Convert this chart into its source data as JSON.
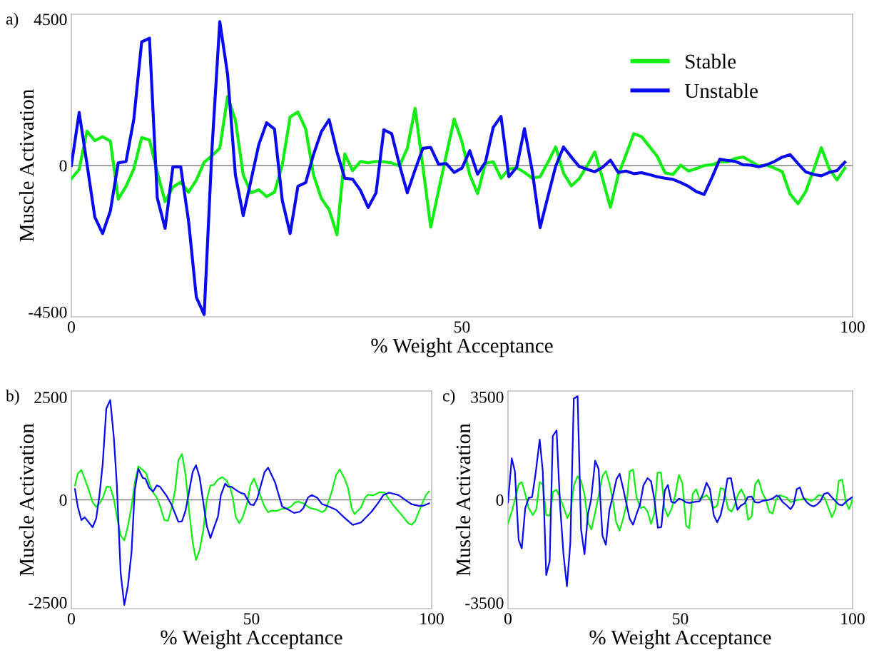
{
  "chart_data": [
    {
      "type": "line",
      "title": "a)",
      "xlabel": "% Weight Acceptance",
      "ylabel": "Muscle Activation",
      "x": [
        0,
        1,
        2,
        3,
        4,
        5,
        6,
        7,
        8,
        9,
        10,
        11,
        12,
        13,
        14,
        15,
        16,
        17,
        18,
        19,
        20,
        21,
        22,
        23,
        24,
        25,
        26,
        27,
        28,
        29,
        30,
        31,
        32,
        33,
        34,
        35,
        36,
        37,
        38,
        39,
        40,
        41,
        42,
        43,
        44,
        45,
        46,
        47,
        48,
        49,
        50,
        51,
        52,
        53,
        54,
        55,
        56,
        57,
        58,
        59,
        60,
        61,
        62,
        63,
        64,
        65,
        66,
        67,
        68,
        69,
        70,
        71,
        72,
        73,
        74,
        75,
        76,
        77,
        78,
        79,
        80,
        81,
        82,
        83,
        84,
        85,
        86,
        87,
        88,
        89,
        90,
        91,
        92,
        93,
        94,
        95,
        96,
        97,
        98,
        99
      ],
      "series": [
        {
          "name": "Stable",
          "color": "#11ee11",
          "values": [
            -405,
            -120,
            1055,
            765,
            885,
            750,
            -1035,
            -640,
            -100,
            860,
            785,
            -210,
            -1110,
            -665,
            -510,
            -820,
            -445,
            100,
            300,
            530,
            2120,
            1395,
            -290,
            -840,
            -745,
            -955,
            -820,
            25,
            1490,
            1645,
            1120,
            -290,
            -1010,
            -1360,
            -2130,
            360,
            -155,
            125,
            85,
            125,
            115,
            80,
            -15,
            530,
            1760,
            -40,
            -1895,
            -775,
            335,
            1430,
            730,
            -290,
            -860,
            65,
            115,
            -390,
            -110,
            -70,
            -210,
            -390,
            -345,
            100,
            570,
            -235,
            -625,
            -405,
            -15,
            415,
            -405,
            -1285,
            -290,
            335,
            980,
            885,
            585,
            280,
            -225,
            -275,
            10,
            -170,
            -95,
            0,
            25,
            115,
            115,
            220,
            260,
            125,
            -15,
            10,
            -80,
            -190,
            -875,
            -1175,
            -800,
            -135,
            550,
            -95,
            -445,
            -80
          ]
        },
        {
          "name": "Unstable",
          "color": "#0a0aee",
          "values": [
            0,
            1630,
            50,
            -1580,
            -2090,
            -1390,
            80,
            125,
            1430,
            3800,
            3915,
            -995,
            -1930,
            -40,
            -40,
            -1700,
            -4050,
            -4580,
            500,
            4425,
            2800,
            -290,
            -1540,
            -450,
            650,
            1315,
            1120,
            -1070,
            -2090,
            -640,
            -525,
            340,
            1040,
            1410,
            415,
            -390,
            -420,
            -760,
            -1290,
            -840,
            1100,
            980,
            20,
            -840,
            -130,
            530,
            555,
            40,
            60,
            -210,
            -80,
            455,
            -265,
            100,
            1175,
            1510,
            -345,
            -55,
            1135,
            -170,
            -1910,
            -955,
            -15,
            570,
            260,
            -30,
            -115,
            -190,
            -55,
            165,
            -210,
            -170,
            -250,
            -220,
            -280,
            -345,
            -390,
            -425,
            -525,
            -640,
            -800,
            -890,
            -370,
            195,
            155,
            125,
            25,
            10,
            -40,
            25,
            125,
            260,
            335,
            65,
            -195,
            -275,
            -315,
            -210,
            -155,
            100
          ]
        }
      ],
      "xlim": [
        0,
        100
      ],
      "xticks": [
        0,
        50,
        100
      ],
      "ylim": [
        -4650,
        4650
      ],
      "yticks": [
        -4500,
        0,
        4500
      ],
      "ref_lines": [
        {
          "axis": "y",
          "value": 0,
          "color": "#808080"
        }
      ],
      "grid": false,
      "legend": "top right"
    },
    {
      "type": "line",
      "title": "b)",
      "xlabel": "% Weight Acceptance",
      "ylabel": "Muscle Activation",
      "series": [
        {
          "color": "#11ee11",
          "x": [
            1.0,
            1.8,
            2.8,
            4.6,
            5.9,
            6.9,
            7.8,
            8.8,
            9.8,
            10.8,
            11.8,
            12.7,
            13.7,
            14.7,
            15.7,
            16.7,
            17.6,
            18.6,
            19.8,
            20.8,
            21.6,
            22.5,
            23.7,
            24.7,
            25.8,
            26.8,
            27.8,
            28.8,
            29.7,
            30.7,
            31.7,
            32.7,
            33.7,
            34.6,
            35.6,
            36.6,
            37.6,
            38.6,
            39.5,
            40.7,
            41.8,
            43.1,
            44.1,
            44.8,
            45.6,
            46.6,
            47.5,
            48.7,
            49.7,
            50.7,
            51.9,
            53.6,
            54.6,
            55.6,
            56.9,
            58.5,
            60.1,
            61.1,
            62.1,
            63.1,
            64.4,
            66.3,
            68.3,
            69.6,
            70.6,
            72.2,
            73.5,
            74.5,
            75.8,
            76.8,
            77.8,
            78.6,
            80.4,
            81.5,
            82.4,
            83.7,
            85.6,
            86.9,
            89.2,
            91.2,
            93.5,
            94.4,
            95.4,
            96.7,
            98.4,
            99.3
          ],
          "values": [
            349,
            640,
            727,
            302,
            -58,
            -174,
            -87,
            58,
            320,
            314,
            12,
            -436,
            -872,
            -988,
            -640,
            -174,
            407,
            814,
            727,
            640,
            407,
            203,
            58,
            -174,
            -494,
            -512,
            -203,
            233,
            959,
            1116,
            610,
            -291,
            -1047,
            -1465,
            -1221,
            -756,
            0,
            349,
            360,
            494,
            552,
            465,
            291,
            58,
            -407,
            -570,
            -436,
            -116,
            349,
            523,
            233,
            -163,
            -302,
            -262,
            -273,
            -221,
            -203,
            -157,
            -58,
            -47,
            -87,
            -203,
            -244,
            -302,
            -244,
            174,
            610,
            738,
            523,
            291,
            -203,
            -349,
            -186,
            47,
            128,
            105,
            186,
            174,
            -116,
            -320,
            -570,
            -610,
            -523,
            -233,
            116,
            203
          ]
        },
        {
          "color": "#0a0aee",
          "x": [
            1.0,
            1.8,
            2.8,
            3.7,
            5.9,
            6.9,
            7.8,
            8.7,
            9.7,
            10.8,
            11.8,
            12.6,
            13.7,
            14.7,
            15.7,
            16.7,
            17.6,
            18.6,
            19.8,
            20.6,
            21.6,
            22.7,
            23.7,
            24.6,
            26.5,
            27.8,
            29.7,
            30.7,
            31.7,
            33.7,
            34.6,
            35.6,
            37.6,
            38.6,
            39.5,
            40.7,
            41.5,
            42.7,
            43.5,
            44.4,
            45.8,
            47.1,
            48.0,
            49.7,
            50.6,
            51.6,
            53.6,
            54.6,
            56.5,
            58.5,
            60.1,
            61.8,
            63.4,
            64.4,
            65.7,
            66.7,
            68.3,
            69.6,
            70.9,
            73.5,
            75.8,
            78.1,
            80.4,
            83.3,
            85.3,
            86.6,
            88.2,
            90.8,
            93.1,
            94.4,
            96.4,
            97.7,
            99.3
          ],
          "values": [
            262,
            -174,
            -494,
            -424,
            -669,
            -453,
            116,
            872,
            2221,
            2430,
            1512,
            407,
            -1802,
            -2560,
            -2093,
            -1279,
            233,
            756,
            535,
            512,
            291,
            203,
            349,
            320,
            87,
            -116,
            -535,
            -523,
            -262,
            686,
            843,
            552,
            -640,
            -930,
            -698,
            -407,
            116,
            395,
            320,
            320,
            233,
            163,
            145,
            -116,
            -128,
            29,
            669,
            785,
            436,
            -163,
            -233,
            -320,
            -291,
            -203,
            58,
            116,
            47,
            -105,
            -145,
            -244,
            -436,
            -610,
            -552,
            -291,
            -58,
            116,
            174,
            116,
            -29,
            -105,
            -145,
            -145,
            -87
          ]
        }
      ],
      "xlim": [
        0,
        100
      ],
      "xticks": [
        0,
        50,
        100
      ],
      "ylim": [
        -2650,
        2650
      ],
      "yticks": [
        -2500,
        0,
        2500
      ],
      "ref_lines": [
        {
          "axis": "y",
          "value": 0,
          "color": "#808080"
        }
      ],
      "grid": false
    },
    {
      "type": "line",
      "title": "c)",
      "xlabel": "% Weight Acceptance",
      "ylabel": "Muscle Activation",
      "series": [
        {
          "color": "#11ee11",
          "x": [
            0.0,
            1.1,
            2.0,
            3.1,
            4.0,
            5.0,
            6.0,
            7.2,
            8.2,
            9.2,
            10.1,
            11.1,
            12.1,
            13.1,
            14.1,
            15.1,
            16.1,
            17.2,
            18.2,
            19.1,
            20.2,
            21.2,
            22.2,
            23.2,
            24.2,
            25.2,
            26.2,
            27.4,
            28.4,
            29.4,
            30.4,
            31.4,
            32.4,
            33.4,
            34.4,
            35.3,
            36.3,
            37.3,
            38.5,
            39.5,
            40.5,
            41.5,
            42.4,
            43.4,
            44.4,
            45.4,
            46.4,
            47.4,
            48.4,
            49.6,
            50.6,
            51.7,
            52.6,
            53.6,
            54.6,
            55.6,
            56.6,
            57.6,
            58.7,
            59.7,
            60.7,
            61.7,
            62.7,
            63.9,
            64.9,
            65.7,
            66.7,
            67.7,
            68.7,
            69.7,
            70.7,
            71.7,
            72.7,
            73.8,
            74.8,
            75.8,
            76.8,
            77.8,
            78.8,
            79.8,
            80.8,
            82.0,
            83.1,
            84.1,
            85.1,
            86.1,
            87.1,
            88.1,
            89.1,
            90.1,
            91.0,
            92.0,
            93.0,
            94.0,
            95.0,
            96.0,
            97.0,
            98.0,
            99.0,
            100.0
          ],
          "values": [
            -805,
            -400,
            0,
            525,
            605,
            200,
            -280,
            -520,
            -320,
            605,
            525,
            -520,
            -540,
            280,
            340,
            80,
            -240,
            -620,
            -400,
            485,
            805,
            645,
            200,
            -765,
            -1005,
            -485,
            80,
            805,
            980,
            565,
            0,
            -765,
            -1050,
            -645,
            -160,
            965,
            1030,
            80,
            -280,
            -240,
            -400,
            -820,
            -485,
            925,
            925,
            -280,
            -565,
            -320,
            80,
            845,
            565,
            -885,
            -965,
            200,
            360,
            15,
            80,
            160,
            0,
            -280,
            -200,
            400,
            360,
            -320,
            -400,
            -200,
            160,
            360,
            120,
            -685,
            -565,
            525,
            685,
            240,
            15,
            -400,
            -465,
            0,
            160,
            120,
            80,
            -80,
            -40,
            0,
            15,
            40,
            15,
            -40,
            40,
            160,
            145,
            40,
            -280,
            -590,
            -320,
            645,
            685,
            -65,
            -320,
            0
          ]
        },
        {
          "color": "#0a0aee",
          "x": [
            0.0,
            1.1,
            2.0,
            3.1,
            4.0,
            5.0,
            6.0,
            7.0,
            8.0,
            9.2,
            10.1,
            11.1,
            12.1,
            13.0,
            14.1,
            15.1,
            16.1,
            17.1,
            18.1,
            19.1,
            20.2,
            21.2,
            22.2,
            23.2,
            24.1,
            25.3,
            26.3,
            27.4,
            28.4,
            29.4,
            30.4,
            31.5,
            32.4,
            33.4,
            34.4,
            35.3,
            36.3,
            37.3,
            38.3,
            39.3,
            40.5,
            41.5,
            42.4,
            43.5,
            44.5,
            45.5,
            46.4,
            47.4,
            48.4,
            49.6,
            50.6,
            51.6,
            52.6,
            53.6,
            54.6,
            55.6,
            56.6,
            57.6,
            58.6,
            59.7,
            60.7,
            61.7,
            62.7,
            63.7,
            64.7,
            65.7,
            66.6,
            67.5,
            68.7,
            69.6,
            70.7,
            71.7,
            72.7,
            73.8,
            74.8,
            75.8,
            76.9,
            78.0,
            78.8,
            79.6,
            81.0,
            82.0,
            82.9,
            83.8,
            84.7,
            85.7,
            86.7,
            87.7,
            88.7,
            89.7,
            90.7,
            91.7,
            92.8,
            93.9,
            95.0,
            96.0,
            97.0,
            98.0,
            98.9,
            100.0
          ],
          "values": [
            -80,
            1410,
            970,
            -1370,
            -1650,
            -290,
            65,
            95,
            885,
            2050,
            970,
            -2560,
            -2080,
            2170,
            2360,
            -160,
            -1850,
            -2940,
            -1450,
            3445,
            3525,
            -1000,
            -1850,
            -485,
            0,
            1330,
            1050,
            -1210,
            -1530,
            -365,
            120,
            710,
            885,
            400,
            -160,
            -645,
            -845,
            -485,
            -160,
            485,
            740,
            630,
            80,
            -950,
            -925,
            320,
            500,
            -65,
            -105,
            40,
            0,
            -80,
            -105,
            -80,
            -65,
            -50,
            200,
            580,
            365,
            -520,
            -765,
            -520,
            0,
            725,
            740,
            120,
            -340,
            -200,
            -120,
            95,
            110,
            -80,
            -95,
            -40,
            -15,
            0,
            55,
            145,
            95,
            -65,
            -200,
            -320,
            -160,
            365,
            420,
            80,
            -80,
            -180,
            -225,
            -160,
            -40,
            200,
            240,
            95,
            -40,
            -160,
            -185,
            -80,
            15,
            95
          ]
        }
      ],
      "xlim": [
        0,
        100
      ],
      "xticks": [
        0,
        50,
        100
      ],
      "ylim": [
        -3700,
        3700
      ],
      "yticks": [
        -3500,
        0,
        3500
      ],
      "ref_lines": [
        {
          "axis": "y",
          "value": 0,
          "color": "#808080"
        }
      ],
      "grid": false
    }
  ]
}
